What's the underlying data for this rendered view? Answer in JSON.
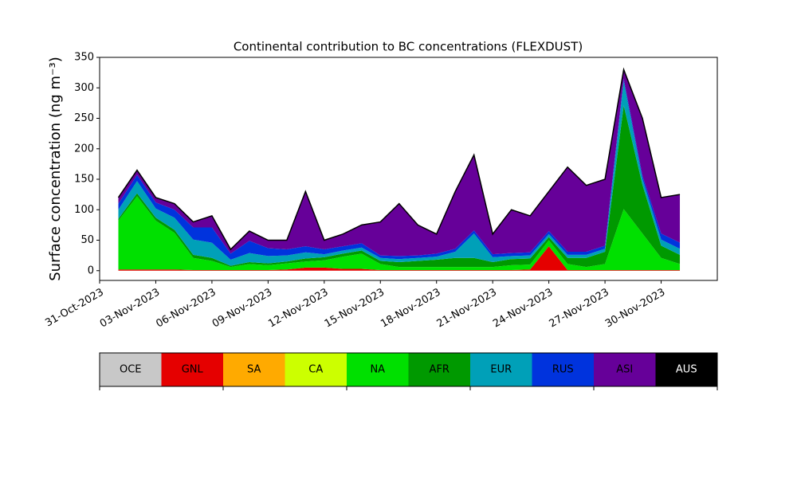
{
  "chart_data": {
    "type": "stacked_area",
    "title": "Continental contribution to BC concentrations (FLEXDUST)",
    "y_label": "Surface concentration (ng m⁻³)",
    "x": [
      "01-Nov-2023",
      "02-Nov-2023",
      "03-Nov-2023",
      "04-Nov-2023",
      "05-Nov-2023",
      "06-Nov-2023",
      "07-Nov-2023",
      "08-Nov-2023",
      "09-Nov-2023",
      "10-Nov-2023",
      "11-Nov-2023",
      "12-Nov-2023",
      "13-Nov-2023",
      "14-Nov-2023",
      "15-Nov-2023",
      "16-Nov-2023",
      "17-Nov-2023",
      "18-Nov-2023",
      "19-Nov-2023",
      "20-Nov-2023",
      "21-Nov-2023",
      "22-Nov-2023",
      "23-Nov-2023",
      "24-Nov-2023",
      "25-Nov-2023",
      "26-Nov-2023",
      "27-Nov-2023",
      "28-Nov-2023",
      "29-Nov-2023",
      "30-Nov-2023",
      "01-Dec-2023"
    ],
    "series": [
      {
        "name": "OCE",
        "color": "#c8c8c8",
        "values": [
          0,
          0,
          0,
          0,
          0,
          0,
          0,
          0,
          0,
          0,
          0,
          0,
          0,
          0,
          0,
          0,
          0,
          0,
          0,
          0,
          0,
          0,
          0,
          0,
          0,
          0,
          0,
          0,
          0,
          0,
          0
        ]
      },
      {
        "name": "GNL",
        "color": "#e50000",
        "values": [
          2,
          2,
          2,
          2,
          1,
          1,
          1,
          1,
          1,
          2,
          5,
          5,
          3,
          3,
          1,
          1,
          1,
          1,
          1,
          1,
          1,
          1,
          2,
          40,
          1,
          1,
          1,
          1,
          1,
          1,
          1
        ]
      },
      {
        "name": "SA",
        "color": "#ffaa00",
        "values": [
          0,
          0,
          0,
          0,
          0,
          0,
          0,
          0,
          0,
          0,
          0,
          0,
          0,
          0,
          0,
          0,
          0,
          0,
          0,
          0,
          0,
          0,
          0,
          0,
          0,
          0,
          0,
          0,
          0,
          0,
          0
        ]
      },
      {
        "name": "CA",
        "color": "#ccff00",
        "values": [
          0,
          0,
          0,
          0,
          0,
          0,
          0,
          0,
          0,
          0,
          0,
          0,
          0,
          0,
          0,
          0,
          0,
          0,
          0,
          0,
          0,
          0,
          0,
          0,
          0,
          0,
          0,
          0,
          0,
          0,
          0
        ]
      },
      {
        "name": "NA",
        "color": "#00e000",
        "values": [
          80,
          120,
          80,
          60,
          20,
          15,
          5,
          10,
          8,
          10,
          10,
          12,
          20,
          25,
          10,
          5,
          5,
          5,
          5,
          5,
          5,
          8,
          8,
          10,
          10,
          5,
          10,
          100,
          60,
          20,
          10
        ]
      },
      {
        "name": "AFR",
        "color": "#009900",
        "values": [
          3,
          5,
          5,
          5,
          5,
          5,
          2,
          3,
          3,
          3,
          5,
          5,
          5,
          5,
          5,
          8,
          10,
          12,
          15,
          15,
          8,
          10,
          10,
          5,
          10,
          15,
          20,
          170,
          80,
          20,
          15
        ]
      },
      {
        "name": "EUR",
        "color": "#00a0b8",
        "values": [
          15,
          20,
          15,
          20,
          25,
          25,
          10,
          15,
          12,
          10,
          10,
          5,
          5,
          5,
          5,
          5,
          5,
          5,
          10,
          40,
          8,
          5,
          5,
          5,
          5,
          5,
          5,
          40,
          10,
          10,
          10
        ]
      },
      {
        "name": "RUS",
        "color": "#0033dd",
        "values": [
          10,
          10,
          10,
          13,
          20,
          25,
          10,
          20,
          13,
          10,
          10,
          8,
          7,
          7,
          4,
          5,
          4,
          5,
          5,
          5,
          5,
          5,
          5,
          5,
          5,
          5,
          5,
          4,
          5,
          10,
          10
        ]
      },
      {
        "name": "ASI",
        "color": "#660099",
        "values": [
          10,
          8,
          8,
          10,
          9,
          19,
          7,
          16,
          13,
          15,
          90,
          15,
          20,
          30,
          55,
          86,
          50,
          32,
          94,
          124,
          33,
          71,
          60,
          65,
          139,
          109,
          109,
          15,
          94,
          59,
          79
        ]
      },
      {
        "name": "AUS",
        "color": "#000000",
        "values": [
          0,
          0,
          0,
          0,
          0,
          0,
          0,
          0,
          0,
          0,
          0,
          0,
          0,
          0,
          0,
          0,
          0,
          0,
          0,
          0,
          0,
          0,
          0,
          0,
          0,
          0,
          0,
          0,
          0,
          0,
          0
        ]
      }
    ],
    "xlim": [
      "31-Oct-2023",
      "03-Dec-2023"
    ],
    "xticks": [
      "31-Oct-2023",
      "03-Nov-2023",
      "06-Nov-2023",
      "09-Nov-2023",
      "12-Nov-2023",
      "15-Nov-2023",
      "18-Nov-2023",
      "21-Nov-2023",
      "24-Nov-2023",
      "27-Nov-2023",
      "30-Nov-2023"
    ],
    "ylim": [
      -16,
      350
    ],
    "yticks": [
      0,
      50,
      100,
      150,
      200,
      250,
      300,
      350
    ]
  }
}
